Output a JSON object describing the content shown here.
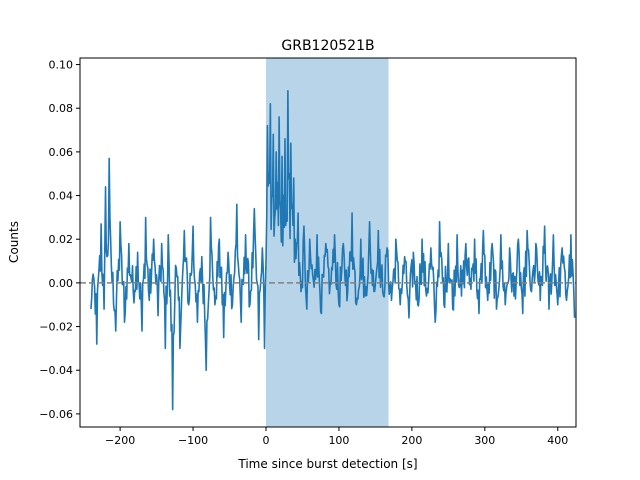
{
  "chart_data": {
    "type": "line",
    "title": "GRB120521B",
    "xlabel": "Time since burst detection [s]",
    "ylabel": "Counts",
    "xlim": [
      -255,
      425
    ],
    "ylim": [
      -0.066,
      0.103
    ],
    "xticks": [
      -200,
      -100,
      0,
      100,
      200,
      300,
      400
    ],
    "xtick_labels": [
      "−200",
      "−100",
      "0",
      "100",
      "200",
      "300",
      "400"
    ],
    "yticks": [
      -0.06,
      -0.04,
      -0.02,
      0.0,
      0.02,
      0.04,
      0.06,
      0.08,
      0.1
    ],
    "ytick_labels": [
      "−0.06",
      "−0.04",
      "−0.02",
      "0.00",
      "0.02",
      "0.04",
      "0.06",
      "0.08",
      "0.10"
    ],
    "grid": false,
    "legend": "none",
    "highlight_span": {
      "x_start": 0,
      "x_end": 168,
      "color": "#b8d4e8"
    },
    "baseline": {
      "y": 0.0,
      "style": "dashed",
      "color": "#808080"
    },
    "series": [
      {
        "color": "#1f77b4",
        "x_start": -240,
        "x_step": 1,
        "anchors": [
          [
            -240,
            -0.012
          ],
          [
            -237,
            0.004
          ],
          [
            -232,
            -0.028
          ],
          [
            -229,
            0.006
          ],
          [
            -226,
            0.027
          ],
          [
            -222,
            -0.012
          ],
          [
            -220,
            0.044
          ],
          [
            -218,
            0.012
          ],
          [
            -215,
            0.057
          ],
          [
            -212,
            0.008
          ],
          [
            -206,
            -0.022
          ],
          [
            -200,
            0.028
          ],
          [
            -194,
            -0.018
          ],
          [
            -188,
            0.018
          ],
          [
            -182,
            -0.004
          ],
          [
            -176,
            0.014
          ],
          [
            -170,
            -0.022
          ],
          [
            -165,
            0.03
          ],
          [
            -160,
            -0.008
          ],
          [
            -154,
            0.02
          ],
          [
            -148,
            -0.015
          ],
          [
            -143,
            0.018
          ],
          [
            -138,
            -0.03
          ],
          [
            -134,
            0.022
          ],
          [
            -128,
            -0.058
          ],
          [
            -124,
            0.008
          ],
          [
            -118,
            -0.03
          ],
          [
            -112,
            0.024
          ],
          [
            -106,
            -0.01
          ],
          [
            -100,
            0.026
          ],
          [
            -94,
            -0.018
          ],
          [
            -88,
            0.012
          ],
          [
            -82,
            -0.04
          ],
          [
            -76,
            0.03
          ],
          [
            -70,
            -0.01
          ],
          [
            -64,
            0.02
          ],
          [
            -58,
            -0.025
          ],
          [
            -52,
            0.014
          ],
          [
            -46,
            -0.01
          ],
          [
            -40,
            0.036
          ],
          [
            -34,
            -0.018
          ],
          [
            -28,
            0.022
          ],
          [
            -22,
            -0.01
          ],
          [
            -16,
            0.034
          ],
          [
            -10,
            -0.026
          ],
          [
            -5,
            0.016
          ],
          [
            -2,
            -0.03
          ],
          [
            0,
            0.01
          ],
          [
            2,
            0.072
          ],
          [
            4,
            0.05
          ],
          [
            6,
            0.082
          ],
          [
            8,
            0.04
          ],
          [
            10,
            0.068
          ],
          [
            12,
            0.03
          ],
          [
            14,
            0.06
          ],
          [
            16,
            0.046
          ],
          [
            18,
            0.076
          ],
          [
            20,
            0.034
          ],
          [
            22,
            0.058
          ],
          [
            24,
            0.04
          ],
          [
            26,
            0.066
          ],
          [
            28,
            0.03
          ],
          [
            30,
            0.088
          ],
          [
            32,
            0.05
          ],
          [
            34,
            0.064
          ],
          [
            36,
            0.036
          ],
          [
            38,
            0.048
          ],
          [
            40,
            0.02
          ],
          [
            44,
            0.032
          ],
          [
            48,
            -0.004
          ],
          [
            52,
            0.026
          ],
          [
            56,
            -0.012
          ],
          [
            60,
            0.02
          ],
          [
            66,
            -0.002
          ],
          [
            70,
            0.022
          ],
          [
            76,
            -0.014
          ],
          [
            82,
            0.018
          ],
          [
            88,
            0.0
          ],
          [
            94,
            0.022
          ],
          [
            100,
            -0.01
          ],
          [
            106,
            0.018
          ],
          [
            112,
            -0.004
          ],
          [
            118,
            0.032
          ],
          [
            124,
            -0.01
          ],
          [
            130,
            0.02
          ],
          [
            136,
            -0.006
          ],
          [
            142,
            0.028
          ],
          [
            148,
            -0.004
          ],
          [
            154,
            0.024
          ],
          [
            160,
            -0.004
          ],
          [
            166,
            0.016
          ],
          [
            172,
            -0.008
          ],
          [
            178,
            0.02
          ],
          [
            184,
            -0.01
          ],
          [
            190,
            0.012
          ],
          [
            196,
            -0.016
          ],
          [
            202,
            0.014
          ],
          [
            208,
            -0.01
          ],
          [
            214,
            0.02
          ],
          [
            220,
            -0.006
          ],
          [
            226,
            0.016
          ],
          [
            232,
            -0.018
          ],
          [
            238,
            0.028
          ],
          [
            244,
            -0.01
          ],
          [
            250,
            0.018
          ],
          [
            256,
            -0.012
          ],
          [
            262,
            0.022
          ],
          [
            268,
            -0.006
          ],
          [
            274,
            0.018
          ],
          [
            280,
            0.002
          ],
          [
            286,
            0.02
          ],
          [
            292,
            -0.014
          ],
          [
            298,
            0.024
          ],
          [
            304,
            -0.008
          ],
          [
            310,
            0.018
          ],
          [
            316,
            -0.012
          ],
          [
            322,
            0.022
          ],
          [
            328,
            -0.01
          ],
          [
            334,
            0.016
          ],
          [
            340,
            -0.006
          ],
          [
            346,
            0.02
          ],
          [
            352,
            -0.014
          ],
          [
            358,
            0.024
          ],
          [
            364,
            -0.004
          ],
          [
            370,
            0.018
          ],
          [
            376,
            -0.008
          ],
          [
            382,
            0.026
          ],
          [
            388,
            -0.012
          ],
          [
            394,
            0.022
          ],
          [
            400,
            -0.01
          ],
          [
            406,
            0.016
          ],
          [
            412,
            -0.008
          ],
          [
            418,
            0.022
          ],
          [
            423,
            -0.016
          ]
        ]
      }
    ]
  }
}
